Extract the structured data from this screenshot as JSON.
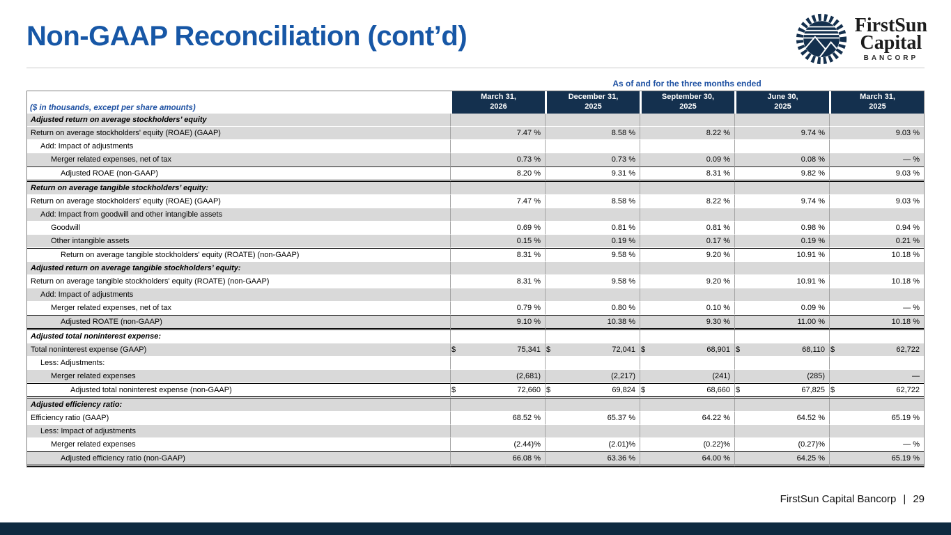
{
  "slide": {
    "title": "Non-GAAP Reconciliation (cont’d)",
    "footer": {
      "company": "FirstSun Capital Bancorp",
      "separator": "|",
      "page_number": "29"
    },
    "logo": {
      "line1": "FirstSun",
      "line2": "Capital",
      "line3": "BANCORP"
    },
    "colors": {
      "title_blue": "#1757a6",
      "caption_blue": "#1d50a2",
      "header_navy": "#14304e",
      "row_gray": "#d9d9d9",
      "bottom_bar_navy": "#0e2a40"
    }
  },
  "table": {
    "caption": "As of and for the three months ended",
    "row_header_label": "($ in thousands, except per share amounts)",
    "columns": [
      "March 31,\n2026",
      "December 31,\n2025",
      "September 30,\n2025",
      "June 30,\n2025",
      "March 31,\n2025"
    ],
    "rows": [
      {
        "label": "Adjusted return on average stockholders’ equity",
        "section": true,
        "indent": 0,
        "shade": "gray",
        "currency": false,
        "border": "none",
        "values": [
          "",
          "",
          "",
          "",
          ""
        ]
      },
      {
        "label": "Return on average stockholders' equity (ROAE) (GAAP)",
        "section": false,
        "indent": 0,
        "shade": "gray",
        "currency": false,
        "border": "none",
        "values": [
          "7.47 %",
          "8.58 %",
          "8.22 %",
          "9.74 %",
          "9.03 %"
        ]
      },
      {
        "label": "Add: Impact of adjustments",
        "section": false,
        "indent": 1,
        "shade": "white",
        "currency": false,
        "border": "none",
        "values": [
          "",
          "",
          "",
          "",
          ""
        ]
      },
      {
        "label": "Merger related expenses, net of tax",
        "section": false,
        "indent": 2,
        "shade": "gray",
        "currency": false,
        "border": "none",
        "values": [
          "0.73 %",
          "0.73 %",
          "0.09 %",
          "0.08 %",
          "— %"
        ]
      },
      {
        "label": "Adjusted ROAE (non-GAAP)",
        "section": false,
        "indent": 3,
        "shade": "white",
        "currency": false,
        "border": "subtotal",
        "values": [
          "8.20 %",
          "9.31 %",
          "8.31 %",
          "9.82 %",
          "9.03 %"
        ]
      },
      {
        "label": "Return on average tangible stockholders’ equity:",
        "section": true,
        "indent": 0,
        "shade": "gray",
        "currency": false,
        "border": "none",
        "values": [
          "",
          "",
          "",
          "",
          ""
        ]
      },
      {
        "label": "Return on average stockholders' equity (ROAE) (GAAP)",
        "section": false,
        "indent": 0,
        "shade": "white",
        "currency": false,
        "border": "none",
        "values": [
          "7.47 %",
          "8.58 %",
          "8.22 %",
          "9.74 %",
          "9.03 %"
        ]
      },
      {
        "label": "Add: Impact from goodwill and other intangible assets",
        "section": false,
        "indent": 1,
        "shade": "gray",
        "currency": false,
        "border": "none",
        "values": [
          "",
          "",
          "",
          "",
          ""
        ]
      },
      {
        "label": "Goodwill",
        "section": false,
        "indent": 2,
        "shade": "white",
        "currency": false,
        "border": "none",
        "values": [
          "0.69 %",
          "0.81 %",
          "0.81 %",
          "0.98 %",
          "0.94 %"
        ]
      },
      {
        "label": "Other intangible assets",
        "section": false,
        "indent": 2,
        "shade": "gray",
        "currency": false,
        "border": "none",
        "values": [
          "0.15 %",
          "0.19 %",
          "0.17 %",
          "0.19 %",
          "0.21 %"
        ]
      },
      {
        "label": "Return on average tangible stockholders' equity (ROATE) (non-GAAP)",
        "section": false,
        "indent": 3,
        "shade": "white",
        "currency": false,
        "border": "topline",
        "values": [
          "8.31 %",
          "9.58 %",
          "9.20 %",
          "10.91 %",
          "10.18 %"
        ]
      },
      {
        "label": "Adjusted return on average tangible stockholders’ equity:",
        "section": true,
        "indent": 0,
        "shade": "gray",
        "currency": false,
        "border": "none",
        "values": [
          "",
          "",
          "",
          "",
          ""
        ]
      },
      {
        "label": "Return on average tangible stockholders' equity (ROATE) (non-GAAP)",
        "section": false,
        "indent": 0,
        "shade": "white",
        "currency": false,
        "border": "none",
        "values": [
          "8.31 %",
          "9.58 %",
          "9.20 %",
          "10.91 %",
          "10.18 %"
        ]
      },
      {
        "label": "Add: Impact of adjustments",
        "section": false,
        "indent": 1,
        "shade": "gray",
        "currency": false,
        "border": "none",
        "values": [
          "",
          "",
          "",
          "",
          ""
        ]
      },
      {
        "label": "Merger related expenses, net of tax",
        "section": false,
        "indent": 2,
        "shade": "white",
        "currency": false,
        "border": "none",
        "values": [
          "0.79 %",
          "0.80 %",
          "0.10 %",
          "0.09 %",
          "— %"
        ]
      },
      {
        "label": "Adjusted ROATE (non-GAAP)",
        "section": false,
        "indent": 3,
        "shade": "gray",
        "currency": false,
        "border": "subtotal",
        "values": [
          "9.10 %",
          "10.38 %",
          "9.30 %",
          "11.00 %",
          "10.18 %"
        ]
      },
      {
        "label": "Adjusted total noninterest expense:",
        "section": true,
        "indent": 0,
        "shade": "white",
        "currency": false,
        "border": "none",
        "values": [
          "",
          "",
          "",
          "",
          ""
        ]
      },
      {
        "label": "Total noninterest expense (GAAP)",
        "section": false,
        "indent": 0,
        "shade": "gray",
        "currency": true,
        "border": "none",
        "values": [
          "75,341",
          "72,041",
          "68,901",
          "68,110",
          "62,722"
        ]
      },
      {
        "label": "Less: Adjustments:",
        "section": false,
        "indent": 1,
        "shade": "white",
        "currency": false,
        "border": "none",
        "values": [
          "",
          "",
          "",
          "",
          ""
        ]
      },
      {
        "label": "Merger related expenses",
        "section": false,
        "indent": 2,
        "shade": "gray",
        "currency": false,
        "border": "none",
        "values": [
          "(2,681)",
          "(2,217)",
          "(241)",
          "(285)",
          "—"
        ]
      },
      {
        "label": "Adjusted total noninterest expense (non-GAAP)",
        "section": false,
        "indent": 4,
        "shade": "white",
        "currency": true,
        "border": "subtotal",
        "values": [
          "72,660",
          "69,824",
          "68,660",
          "67,825",
          "62,722"
        ]
      },
      {
        "label": "Adjusted efficiency ratio:",
        "section": true,
        "indent": 0,
        "shade": "gray",
        "currency": false,
        "border": "none",
        "values": [
          "",
          "",
          "",
          "",
          ""
        ]
      },
      {
        "label": "Efficiency ratio (GAAP)",
        "section": false,
        "indent": 0,
        "shade": "white",
        "currency": false,
        "border": "none",
        "values": [
          "68.52 %",
          "65.37 %",
          "64.22 %",
          "64.52 %",
          "65.19 %"
        ]
      },
      {
        "label": "Less: Impact of adjustments",
        "section": false,
        "indent": 1,
        "shade": "gray",
        "currency": false,
        "border": "none",
        "values": [
          "",
          "",
          "",
          "",
          ""
        ]
      },
      {
        "label": "Merger related expenses",
        "section": false,
        "indent": 2,
        "shade": "white",
        "currency": false,
        "border": "none",
        "values": [
          "(2.44)%",
          "(2.01)%",
          "(0.22)%",
          "(0.27)%",
          "— %"
        ]
      },
      {
        "label": "Adjusted efficiency ratio (non-GAAP)",
        "section": false,
        "indent": 3,
        "shade": "gray",
        "currency": false,
        "border": "subtotal",
        "values": [
          "66.08 %",
          "63.36 %",
          "64.00 %",
          "64.25 %",
          "65.19 %"
        ]
      }
    ],
    "currency_symbol": "$"
  }
}
